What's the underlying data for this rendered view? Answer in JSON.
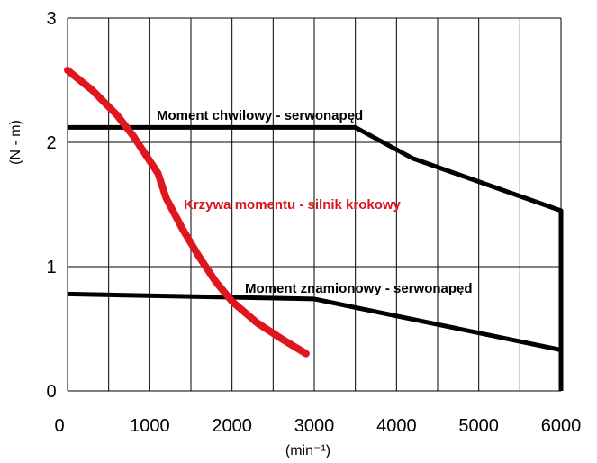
{
  "chart_data": {
    "type": "line",
    "xlabel": "(min⁻¹)",
    "ylabel": "(N - m)",
    "xlim": [
      0,
      6000
    ],
    "ylim": [
      0,
      3
    ],
    "grid": true,
    "x_ticks": [
      "0",
      "1000",
      "2000",
      "3000",
      "4000",
      "5000",
      "6000"
    ],
    "y_ticks": [
      "0",
      "1",
      "2",
      "3"
    ],
    "series": [
      {
        "name": "Moment chwilowy - serwonapęd",
        "color": "#000000",
        "points": [
          [
            0,
            2.12
          ],
          [
            3500,
            2.12
          ],
          [
            4200,
            1.87
          ],
          [
            6000,
            1.45
          ],
          [
            6000,
            0
          ]
        ]
      },
      {
        "name": "Moment znamionowy - serwonapęd",
        "color": "#000000",
        "points": [
          [
            0,
            0.78
          ],
          [
            3000,
            0.74
          ],
          [
            6000,
            0.33
          ]
        ]
      },
      {
        "name": "Krzywa momentu - silnik krokowy",
        "color": "#e0161e",
        "points": [
          [
            0,
            2.58
          ],
          [
            300,
            2.42
          ],
          [
            600,
            2.22
          ],
          [
            800,
            2.05
          ],
          [
            1100,
            1.75
          ],
          [
            1200,
            1.55
          ],
          [
            1400,
            1.3
          ],
          [
            1600,
            1.08
          ],
          [
            1800,
            0.88
          ],
          [
            2000,
            0.72
          ],
          [
            2300,
            0.55
          ],
          [
            2600,
            0.42
          ],
          [
            2900,
            0.3
          ]
        ]
      }
    ]
  }
}
